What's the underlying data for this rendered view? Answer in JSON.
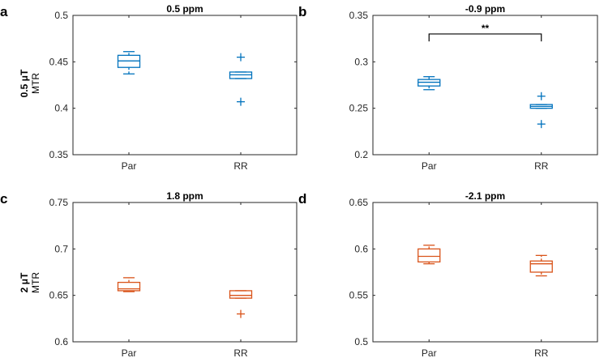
{
  "colors": {
    "blue": "#0072BD",
    "orange": "#D95319",
    "axis": "#262626"
  },
  "row_labels": [
    {
      "bold": "0.5 μT",
      "sub": "MTR"
    },
    {
      "bold": "2 μT",
      "sub": "MTR"
    }
  ],
  "chart_data": [
    {
      "type": "box",
      "letter": "a",
      "title": "0.5 ppm",
      "color_key": "blue",
      "categories": [
        "Par",
        "RR"
      ],
      "ylim": [
        0.35,
        0.5
      ],
      "yticks": [
        0.35,
        0.4,
        0.45,
        0.5
      ],
      "ytick_labels": [
        "0.35",
        "0.4",
        "0.45",
        "0.5"
      ],
      "boxes": [
        {
          "q1": 0.444,
          "median": 0.451,
          "q3": 0.457,
          "whisker_low": 0.437,
          "whisker_high": 0.461,
          "outliers": []
        },
        {
          "q1": 0.432,
          "median": 0.436,
          "q3": 0.439,
          "whisker_low": 0.432,
          "whisker_high": 0.439,
          "outliers": [
            0.455,
            0.407
          ]
        }
      ],
      "significance": null
    },
    {
      "type": "box",
      "letter": "b",
      "title": "-0.9 ppm",
      "color_key": "blue",
      "categories": [
        "Par",
        "RR"
      ],
      "ylim": [
        0.2,
        0.35
      ],
      "yticks": [
        0.2,
        0.25,
        0.3,
        0.35
      ],
      "ytick_labels": [
        "0.2",
        "0.25",
        "0.3",
        "0.35"
      ],
      "boxes": [
        {
          "q1": 0.274,
          "median": 0.278,
          "q3": 0.281,
          "whisker_low": 0.27,
          "whisker_high": 0.284,
          "outliers": []
        },
        {
          "q1": 0.25,
          "median": 0.252,
          "q3": 0.254,
          "whisker_low": 0.25,
          "whisker_high": 0.254,
          "outliers": [
            0.263,
            0.233
          ]
        }
      ],
      "significance": {
        "label": "**",
        "y": 0.33,
        "drop": 0.008
      }
    },
    {
      "type": "box",
      "letter": "c",
      "title": "1.8 ppm",
      "color_key": "orange",
      "categories": [
        "Par",
        "RR"
      ],
      "ylim": [
        0.6,
        0.75
      ],
      "yticks": [
        0.6,
        0.65,
        0.7,
        0.75
      ],
      "ytick_labels": [
        "0.6",
        "0.65",
        "0.7",
        "0.75"
      ],
      "boxes": [
        {
          "q1": 0.655,
          "median": 0.657,
          "q3": 0.664,
          "whisker_low": 0.654,
          "whisker_high": 0.669,
          "outliers": []
        },
        {
          "q1": 0.647,
          "median": 0.65,
          "q3": 0.655,
          "whisker_low": 0.647,
          "whisker_high": 0.655,
          "outliers": [
            0.63
          ]
        }
      ],
      "significance": null
    },
    {
      "type": "box",
      "letter": "d",
      "title": "-2.1 ppm",
      "color_key": "orange",
      "categories": [
        "Par",
        "RR"
      ],
      "ylim": [
        0.5,
        0.65
      ],
      "yticks": [
        0.5,
        0.55,
        0.6,
        0.65
      ],
      "ytick_labels": [
        "0.5",
        "0.55",
        "0.6",
        "0.65"
      ],
      "boxes": [
        {
          "q1": 0.586,
          "median": 0.592,
          "q3": 0.6,
          "whisker_low": 0.584,
          "whisker_high": 0.604,
          "outliers": []
        },
        {
          "q1": 0.575,
          "median": 0.584,
          "q3": 0.587,
          "whisker_low": 0.571,
          "whisker_high": 0.593,
          "outliers": []
        }
      ],
      "significance": null
    }
  ]
}
